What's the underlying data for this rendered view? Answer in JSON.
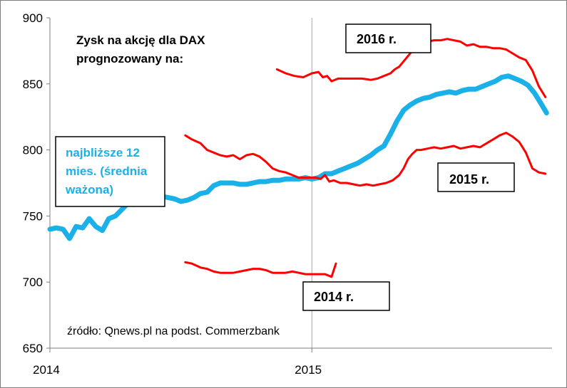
{
  "chart_data": {
    "type": "line",
    "title": [
      "Zysk na akcję dla DAX",
      "prognozowany na:"
    ],
    "source": "źródło: Qnews.pl na podst. Commerzbank",
    "ylim": [
      650,
      900
    ],
    "yticks": [
      650,
      700,
      750,
      800,
      850,
      900
    ],
    "xlim": [
      0,
      23
    ],
    "xticks": [
      {
        "x": 0,
        "label": "2014"
      },
      {
        "x": 12,
        "label": "2015"
      }
    ],
    "grid": {
      "vertical_at": [
        12
      ]
    },
    "colors": {
      "blue": "#1ab0e8",
      "red": "#ff0000"
    },
    "series": [
      {
        "name": "najbliższe 12 mies. (średnia ważona)",
        "label_lines": [
          "najbliższe 12",
          "mies. (średnia",
          "ważona)"
        ],
        "color": "#1ab0e8",
        "x": [
          0,
          0.3,
          0.6,
          0.9,
          1.2,
          1.5,
          1.8,
          2.1,
          2.4,
          2.7,
          3.0,
          3.3,
          3.6,
          3.9,
          4.2,
          4.5,
          4.8,
          5.1,
          5.4,
          5.7,
          6.0,
          6.3,
          6.6,
          6.9,
          7.2,
          7.5,
          7.8,
          8.1,
          8.4,
          8.7,
          9.0,
          9.3,
          9.6,
          9.9,
          10.2,
          10.5,
          10.8,
          11.1,
          11.4,
          11.7,
          12.0,
          12.3,
          12.6,
          12.9,
          13.2,
          13.5,
          13.8,
          14.1,
          14.4,
          14.7,
          15.0,
          15.3,
          15.6,
          15.9,
          16.2,
          16.5,
          16.8,
          17.1,
          17.4,
          17.7,
          18.0,
          18.3,
          18.6,
          18.9,
          19.2,
          19.5,
          19.8,
          20.1,
          20.4,
          20.7,
          21.0,
          21.3,
          21.6,
          21.9,
          22.2,
          22.5,
          22.75
        ],
        "values": [
          740,
          741,
          740,
          733,
          742,
          741,
          748,
          742,
          739,
          748,
          750,
          755,
          760,
          765,
          768,
          769,
          767,
          765,
          764,
          763,
          761,
          762,
          764,
          767,
          768,
          773,
          775,
          775,
          775,
          774,
          774,
          775,
          776,
          776,
          777,
          777,
          778,
          778,
          778,
          779,
          778,
          779,
          782,
          782,
          784,
          786,
          788,
          790,
          793,
          796,
          800,
          803,
          812,
          822,
          830,
          834,
          837,
          839,
          840,
          842,
          843,
          844,
          843,
          845,
          846,
          846,
          848,
          850,
          852,
          855,
          856,
          854,
          852,
          849,
          843,
          835,
          828
        ]
      },
      {
        "name": "2016 r.",
        "color": "#ff0000",
        "x": [
          10.4,
          10.8,
          11.2,
          11.6,
          12.0,
          12.3,
          12.5,
          12.7,
          12.9,
          13.2,
          13.5,
          13.9,
          14.3,
          14.7,
          15.0,
          15.3,
          15.6,
          15.8,
          16.0,
          16.2,
          16.4,
          16.6,
          16.8,
          17.0,
          17.3,
          17.6,
          17.9,
          18.2,
          18.5,
          18.8,
          19.1,
          19.4,
          19.7,
          20.0,
          20.3,
          20.6,
          20.9,
          21.2,
          21.5,
          21.8,
          22.1,
          22.4,
          22.7
        ],
        "values": [
          861,
          858,
          856,
          855,
          858,
          859,
          855,
          856,
          852,
          854,
          854,
          854,
          854,
          853,
          854,
          856,
          858,
          861,
          863,
          867,
          871,
          875,
          878,
          880,
          882,
          883,
          883,
          884,
          883,
          882,
          879,
          880,
          878,
          878,
          877,
          877,
          876,
          873,
          870,
          868,
          860,
          848,
          840
        ]
      },
      {
        "name": "2015 r.",
        "color": "#ff0000",
        "x": [
          6.2,
          6.5,
          6.9,
          7.2,
          7.5,
          7.8,
          8.1,
          8.4,
          8.7,
          9.0,
          9.3,
          9.6,
          9.9,
          10.2,
          10.5,
          10.8,
          11.1,
          11.4,
          11.7,
          12.0,
          12.2,
          12.4,
          12.6,
          12.8,
          13.0,
          13.3,
          13.6,
          13.9,
          14.2,
          14.5,
          14.8,
          15.1,
          15.4,
          15.7,
          16.0,
          16.2,
          16.4,
          16.6,
          16.8,
          17.0,
          17.3,
          17.6,
          17.9,
          18.2,
          18.5,
          18.8,
          19.1,
          19.4,
          19.7,
          20.0,
          20.3,
          20.6,
          20.9,
          21.2,
          21.5,
          21.8,
          22.1,
          22.4,
          22.7
        ],
        "values": [
          811,
          808,
          805,
          800,
          798,
          796,
          795,
          796,
          793,
          796,
          797,
          795,
          791,
          786,
          784,
          783,
          781,
          779,
          779,
          779,
          779,
          778,
          781,
          776,
          777,
          775,
          775,
          774,
          773,
          774,
          773,
          774,
          775,
          777,
          781,
          786,
          793,
          797,
          800,
          800,
          801,
          802,
          801,
          802,
          803,
          801,
          802,
          803,
          802,
          805,
          808,
          811,
          813,
          810,
          806,
          798,
          786,
          783,
          782
        ]
      },
      {
        "name": "2014 r.",
        "color": "#ff0000",
        "x": [
          6.2,
          6.5,
          6.9,
          7.2,
          7.5,
          7.8,
          8.1,
          8.4,
          8.7,
          9.0,
          9.3,
          9.6,
          9.9,
          10.2,
          10.5,
          10.8,
          11.1,
          11.4,
          11.7,
          12.0,
          12.3,
          12.6,
          12.9,
          13.1
        ],
        "values": [
          715,
          714,
          711,
          710,
          708,
          707,
          707,
          707,
          708,
          709,
          710,
          710,
          709,
          707,
          707,
          707,
          708,
          707,
          706,
          706,
          706,
          706,
          704,
          714
        ]
      }
    ]
  }
}
